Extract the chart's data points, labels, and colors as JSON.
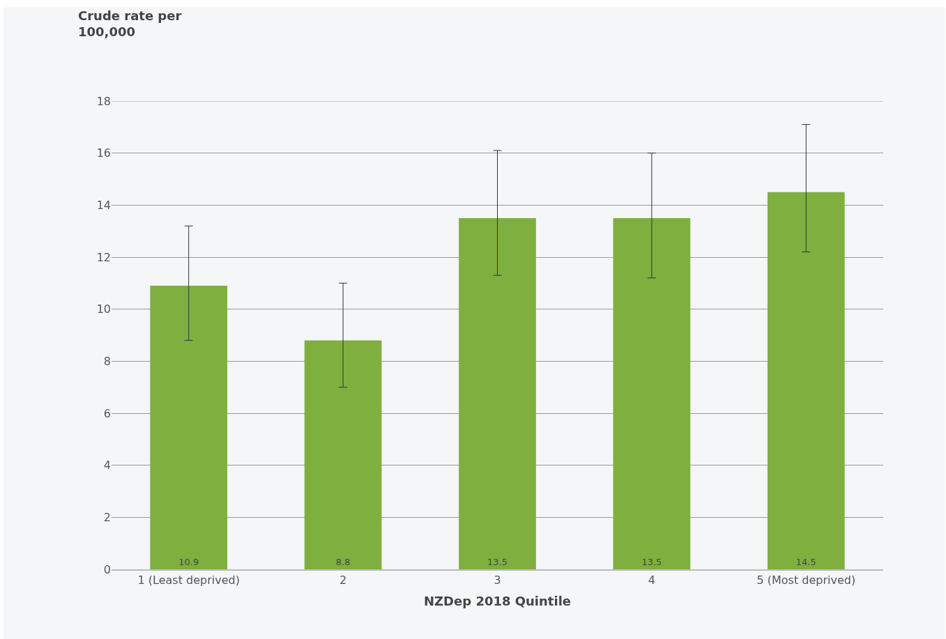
{
  "chart_data": {
    "type": "bar",
    "categories": [
      "1 (Least deprived)",
      "2",
      "3",
      "4",
      "5 (Most deprived)"
    ],
    "values": [
      10.9,
      8.8,
      13.5,
      13.5,
      14.5
    ],
    "errors": [
      [
        8.8,
        13.2
      ],
      [
        7.0,
        11.0
      ],
      [
        11.3,
        16.1
      ],
      [
        11.2,
        16.0
      ],
      [
        12.2,
        17.1
      ]
    ],
    "color": "#7faf3f",
    "ylabel": "Crude rate per\n100,000",
    "xlabel": "NZDep 2018 Quintile",
    "ylim": [
      0,
      18
    ],
    "yticks": [
      0,
      2,
      4,
      6,
      8,
      10,
      12,
      14,
      16,
      18
    ],
    "grid": "y",
    "data_labels": true
  }
}
